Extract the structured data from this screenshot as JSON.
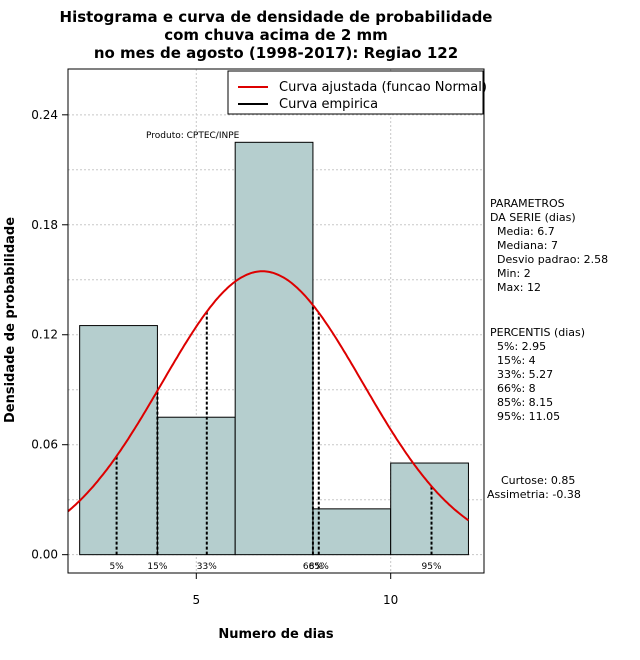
{
  "chart_data": {
    "type": "bar",
    "title_lines": [
      "Histograma e curva de densidade de probabilidade",
      "com chuva acima de 2 mm",
      "no mes de agosto (1998-2017): Regiao 122"
    ],
    "xlabel": "Numero de dias",
    "ylabel": "Densidade de probabilidade",
    "xlim": [
      1.7,
      12.4
    ],
    "ylim": [
      -0.01,
      0.265
    ],
    "xticks": [
      5,
      10
    ],
    "yticks": [
      0.0,
      0.06,
      0.12,
      0.18,
      0.24
    ],
    "ytick_labels": [
      "0.00",
      "0.06",
      "0.12",
      "0.18",
      "0.24"
    ],
    "grid": true,
    "bins": [
      {
        "from": 2,
        "to": 4,
        "density": 0.125
      },
      {
        "from": 4,
        "to": 6,
        "density": 0.075
      },
      {
        "from": 6,
        "to": 8,
        "density": 0.225
      },
      {
        "from": 8,
        "to": 10,
        "density": 0.025
      },
      {
        "from": 10,
        "to": 12,
        "density": 0.05
      }
    ],
    "normal_fit": {
      "mean": 6.7,
      "sd": 2.58,
      "color": "#dd0000"
    },
    "percentiles": [
      {
        "label": "5%",
        "value": 2.95
      },
      {
        "label": "15%",
        "value": 4
      },
      {
        "label": "33%",
        "value": 5.27
      },
      {
        "label": "66%",
        "value": 8
      },
      {
        "label": "85%",
        "value": 8.15
      },
      {
        "label": "95%",
        "value": 11.05
      }
    ],
    "bar_color": "#b5cece",
    "legend": {
      "position": "top-right",
      "entries": [
        {
          "label": "Curva ajustada (funcao Normal)",
          "color": "#dd0000"
        },
        {
          "label": "Curva empirica",
          "color": "#000000"
        }
      ]
    },
    "annotation": "Produto: CPTEC/INPE"
  },
  "side_panel": {
    "params_title": [
      "PARAMETROS",
      "DA SERIE (dias)"
    ],
    "params": [
      "Media: 6.7",
      "Mediana: 7",
      "Desvio padrao: 2.58",
      "Min: 2",
      "Max: 12"
    ],
    "percentis_title": "PERCENTIS (dias)",
    "percentis": [
      "5%: 2.95",
      "15%: 4",
      "33%: 5.27",
      "66%: 8",
      "85%: 8.15",
      "95%: 11.05"
    ],
    "curtose": "Curtose: 0.85",
    "assimetria": "Assimetria: -0.38"
  }
}
